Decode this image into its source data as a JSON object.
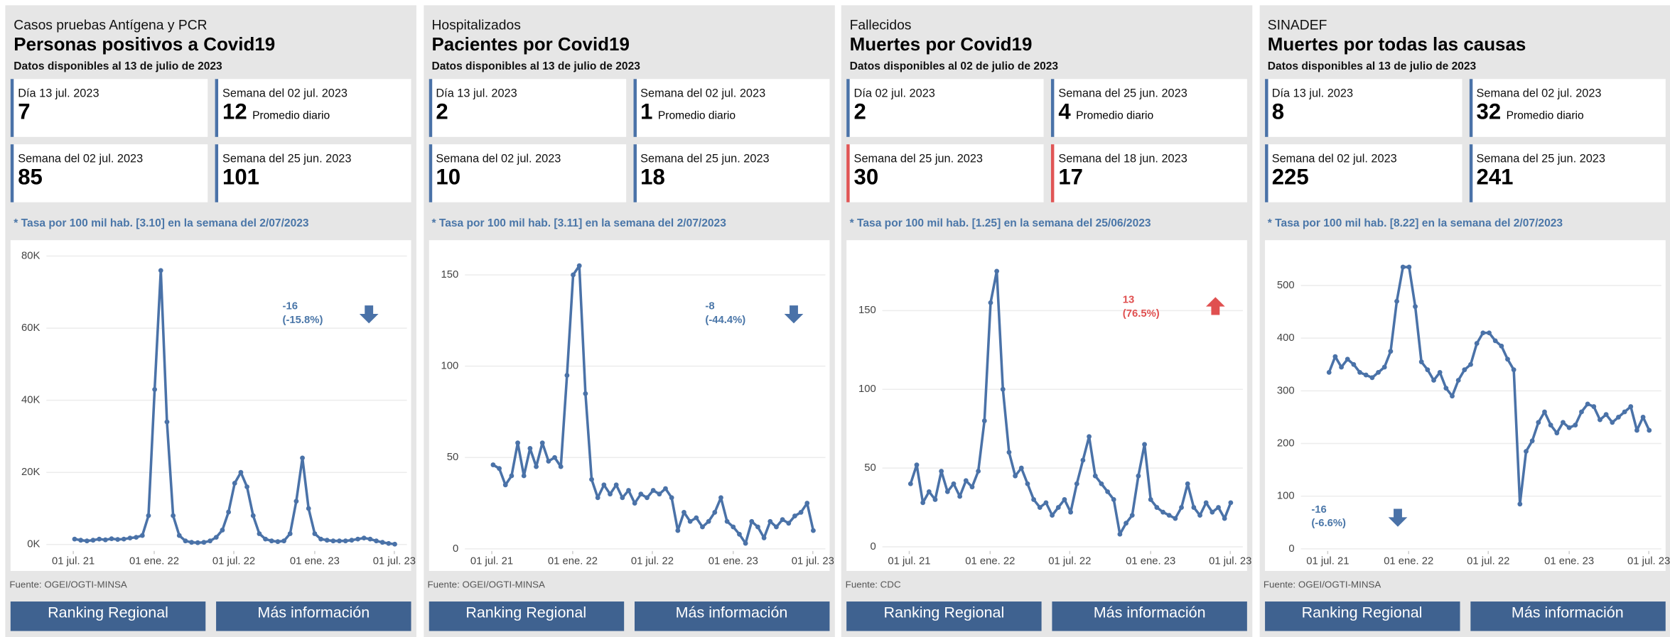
{
  "panels": [
    {
      "category": "Casos pruebas Antígena y PCR",
      "title": "Personas positivos a Covid19",
      "updated": "Datos disponibles al 13 de julio de 2023",
      "cards": [
        {
          "label": "Día 13 jul. 2023",
          "value": 7,
          "color": "#4a72a8"
        },
        {
          "label": "Semana del 02 jul. 2023",
          "value": 12,
          "note": "Promedio diario",
          "color": "#4a72a8"
        },
        {
          "label": "Semana del 02 jul. 2023",
          "value": 85,
          "color": "#4a72a8"
        },
        {
          "label": "Semana del 25 jun. 2023",
          "value": 101,
          "color": "#4a72a8"
        }
      ],
      "rate_note": "* Tasa por 100 mil hab. [3.10] en la semana del 2/07/2023",
      "chart": {
        "type": "line",
        "color": "#4a72a8",
        "grid": true,
        "x": [
          "2021-07-04",
          "2021-07-18",
          "2021-08-01",
          "2021-08-15",
          "2021-08-29",
          "2021-09-12",
          "2021-09-26",
          "2021-10-10",
          "2021-10-24",
          "2021-11-07",
          "2021-11-21",
          "2021-12-05",
          "2021-12-19",
          "2022-01-02",
          "2022-01-16",
          "2022-01-30",
          "2022-02-13",
          "2022-02-27",
          "2022-03-13",
          "2022-03-27",
          "2022-04-10",
          "2022-04-24",
          "2022-05-08",
          "2022-05-22",
          "2022-06-05",
          "2022-06-19",
          "2022-07-03",
          "2022-07-17",
          "2022-07-31",
          "2022-08-14",
          "2022-08-28",
          "2022-09-11",
          "2022-09-25",
          "2022-10-09",
          "2022-10-23",
          "2022-11-06",
          "2022-11-20",
          "2022-12-04",
          "2022-12-18",
          "2023-01-01",
          "2023-01-15",
          "2023-01-29",
          "2023-02-12",
          "2023-02-26",
          "2023-03-12",
          "2023-03-26",
          "2023-04-09",
          "2023-04-23",
          "2023-05-07",
          "2023-05-21",
          "2023-06-04",
          "2023-06-18",
          "2023-07-02"
        ],
        "values": [
          1500,
          1200,
          1000,
          1200,
          1500,
          1300,
          1600,
          1400,
          1500,
          1800,
          2000,
          2500,
          8000,
          43000,
          76000,
          34000,
          8000,
          2500,
          1000,
          600,
          500,
          600,
          1000,
          2000,
          4000,
          9000,
          17000,
          20000,
          16000,
          8000,
          3000,
          1500,
          1000,
          800,
          1000,
          3000,
          12000,
          24000,
          10000,
          3000,
          1500,
          1200,
          1000,
          1000,
          1000,
          1200,
          1500,
          1800,
          1500,
          1000,
          600,
          300,
          100
        ],
        "xlim": [
          "2021-05-20",
          "2023-07-20"
        ],
        "xticks": [
          {
            "value": "2021-07-01",
            "label": "01 jul. 21"
          },
          {
            "value": "2022-01-01",
            "label": "01 ene. 22"
          },
          {
            "value": "2022-07-01",
            "label": "01 jul. 22"
          },
          {
            "value": "2023-01-01",
            "label": "01 ene. 23"
          },
          {
            "value": "2023-07-01",
            "label": "01 jul. 23"
          }
        ],
        "ylim": [
          -1200,
          80600
        ],
        "yticks": [
          {
            "value": 0,
            "label": "0K"
          },
          {
            "value": 20000,
            "label": "20K"
          },
          {
            "value": 40000,
            "label": "40K"
          },
          {
            "value": 60000,
            "label": "60K"
          },
          {
            "value": 80000,
            "label": "80K"
          }
        ],
        "annotation": {
          "lines": [
            "-16",
            "(-15.8%)"
          ],
          "color": "#4a76a8",
          "trend": "down"
        }
      },
      "source": "Fuente: OGEI/OGTI-MINSA",
      "buttons": [
        "Ranking Regional",
        "Más información"
      ]
    },
    {
      "category": "Hospitalizados",
      "title": "Pacientes por Covid19",
      "updated": "Datos disponibles al 13 de julio de 2023",
      "cards": [
        {
          "label": "Día 13 jul. 2023",
          "value": 2,
          "color": "#4a72a8"
        },
        {
          "label": "Semana del 02 jul. 2023",
          "value": 1,
          "note": "Promedio diario",
          "color": "#4a72a8"
        },
        {
          "label": "Semana del 02 jul. 2023",
          "value": 10,
          "color": "#4a72a8"
        },
        {
          "label": "Semana del 25 jun. 2023",
          "value": 18,
          "color": "#4a72a8"
        }
      ],
      "rate_note": "* Tasa por 100 mil hab. [3.11] en la semana del 2/07/2023",
      "chart": {
        "type": "line",
        "color": "#4a72a8",
        "grid": true,
        "x": [
          "2021-07-04",
          "2021-07-18",
          "2021-08-01",
          "2021-08-15",
          "2021-08-29",
          "2021-09-12",
          "2021-09-26",
          "2021-10-10",
          "2021-10-24",
          "2021-11-07",
          "2021-11-21",
          "2021-12-05",
          "2021-12-19",
          "2022-01-02",
          "2022-01-16",
          "2022-01-30",
          "2022-02-13",
          "2022-02-27",
          "2022-03-13",
          "2022-03-27",
          "2022-04-10",
          "2022-04-24",
          "2022-05-08",
          "2022-05-22",
          "2022-06-05",
          "2022-06-19",
          "2022-07-03",
          "2022-07-17",
          "2022-07-31",
          "2022-08-14",
          "2022-08-28",
          "2022-09-11",
          "2022-09-25",
          "2022-10-09",
          "2022-10-23",
          "2022-11-06",
          "2022-11-20",
          "2022-12-04",
          "2022-12-18",
          "2023-01-01",
          "2023-01-15",
          "2023-01-29",
          "2023-02-12",
          "2023-02-26",
          "2023-03-12",
          "2023-03-26",
          "2023-04-09",
          "2023-04-23",
          "2023-05-07",
          "2023-05-21",
          "2023-06-04",
          "2023-06-18",
          "2023-07-02"
        ],
        "values": [
          46,
          44,
          35,
          40,
          58,
          40,
          55,
          45,
          58,
          48,
          50,
          45,
          95,
          150,
          155,
          85,
          38,
          28,
          35,
          30,
          35,
          28,
          32,
          25,
          30,
          28,
          32,
          30,
          33,
          28,
          10,
          20,
          15,
          17,
          12,
          15,
          20,
          28,
          15,
          12,
          8,
          3,
          15,
          12,
          6,
          15,
          12,
          16,
          14,
          18,
          20,
          25,
          10
        ],
        "xlim": [
          "2021-05-20",
          "2023-07-20"
        ],
        "xticks": [
          {
            "value": "2021-07-01",
            "label": "01 jul. 21"
          },
          {
            "value": "2022-01-01",
            "label": "01 ene. 22"
          },
          {
            "value": "2022-07-01",
            "label": "01 jul. 22"
          },
          {
            "value": "2023-01-01",
            "label": "01 ene. 23"
          },
          {
            "value": "2023-07-01",
            "label": "01 jul. 23"
          }
        ],
        "ylim": [
          0,
          161.5
        ],
        "yticks": [
          0,
          50,
          100,
          150
        ],
        "annotation": {
          "lines": [
            "-8",
            "(-44.4%)"
          ],
          "color": "#4a76a8",
          "trend": "down"
        }
      },
      "source": "Fuente: OGEI/OGTI-MINSA",
      "buttons": [
        "Ranking Regional",
        "Más información"
      ]
    },
    {
      "category": "Fallecidos",
      "title": "Muertes por Covid19",
      "updated": "Datos disponibles al 02 de julio de 2023",
      "cards": [
        {
          "label": "Día 02 jul. 2023",
          "value": 2,
          "color": "#4a72a8"
        },
        {
          "label": "Semana del 25 jun. 2023",
          "value": 4,
          "note": "Promedio diario",
          "color": "#4a72a8"
        },
        {
          "label": "Semana del 25 jun. 2023",
          "value": 30,
          "color": "#e05555"
        },
        {
          "label": "Semana del 18 jun. 2023",
          "value": 17,
          "color": "#e05555"
        }
      ],
      "rate_note": "* Tasa por 100 mil hab. [1.25] en la semana del 25/06/2023",
      "chart": {
        "type": "line",
        "color": "#4a72a8",
        "grid": true,
        "x": [
          "2021-07-04",
          "2021-07-18",
          "2021-08-01",
          "2021-08-15",
          "2021-08-29",
          "2021-09-12",
          "2021-09-26",
          "2021-10-10",
          "2021-10-24",
          "2021-11-07",
          "2021-11-21",
          "2021-12-05",
          "2021-12-19",
          "2022-01-02",
          "2022-01-16",
          "2022-01-30",
          "2022-02-13",
          "2022-02-27",
          "2022-03-13",
          "2022-03-27",
          "2022-04-10",
          "2022-04-24",
          "2022-05-08",
          "2022-05-22",
          "2022-06-05",
          "2022-06-19",
          "2022-07-03",
          "2022-07-17",
          "2022-07-31",
          "2022-08-14",
          "2022-08-28",
          "2022-09-11",
          "2022-09-25",
          "2022-10-09",
          "2022-10-23",
          "2022-11-06",
          "2022-11-20",
          "2022-12-04",
          "2022-12-18",
          "2023-01-01",
          "2023-01-15",
          "2023-01-29",
          "2023-02-12",
          "2023-02-26",
          "2023-03-12",
          "2023-03-26",
          "2023-04-09",
          "2023-04-23",
          "2023-05-07",
          "2023-05-21",
          "2023-06-04",
          "2023-06-18",
          "2023-07-02"
        ],
        "values": [
          40,
          52,
          28,
          35,
          30,
          48,
          35,
          40,
          32,
          42,
          38,
          48,
          80,
          155,
          175,
          100,
          60,
          45,
          50,
          40,
          30,
          25,
          28,
          20,
          25,
          30,
          22,
          40,
          55,
          70,
          45,
          40,
          35,
          30,
          8,
          15,
          20,
          45,
          65,
          30,
          25,
          22,
          20,
          18,
          25,
          40,
          25,
          20,
          28,
          22,
          25,
          18,
          28
        ],
        "xlim": [
          "2021-05-20",
          "2023-07-20"
        ],
        "xticks": [
          {
            "value": "2021-07-01",
            "label": "01 jul. 21"
          },
          {
            "value": "2022-01-01",
            "label": "01 ene. 22"
          },
          {
            "value": "2022-07-01",
            "label": "01 jul. 22"
          },
          {
            "value": "2023-01-01",
            "label": "01 ene. 23"
          },
          {
            "value": "2023-07-01",
            "label": "01 jul. 23"
          }
        ],
        "ylim": [
          -1.3,
          186
        ],
        "yticks": [
          0,
          50,
          100,
          150
        ],
        "annotation": {
          "lines": [
            "13",
            "(76.5%)"
          ],
          "color": "#e05050",
          "trend": "up"
        }
      },
      "source": "Fuente: CDC",
      "buttons": [
        "Ranking Regional",
        "Más información"
      ]
    },
    {
      "category": "SINADEF",
      "title": "Muertes por todas las causas",
      "updated": "Datos disponibles al 13 de julio de 2023",
      "cards": [
        {
          "label": "Día 13 jul. 2023",
          "value": 8,
          "color": "#4a72a8"
        },
        {
          "label": "Semana del 02 jul. 2023",
          "value": 32,
          "note": "Promedio diario",
          "color": "#4a72a8"
        },
        {
          "label": "Semana del 02 jul. 2023",
          "value": 225,
          "color": "#4a72a8"
        },
        {
          "label": "Semana del 25 jun. 2023",
          "value": 241,
          "color": "#4a72a8"
        }
      ],
      "rate_note": "* Tasa por 100 mil hab. [8.22] en la semana del 2/07/2023",
      "chart": {
        "type": "line",
        "color": "#4a72a8",
        "grid": true,
        "x": [
          "2021-07-04",
          "2021-07-18",
          "2021-08-01",
          "2021-08-15",
          "2021-08-29",
          "2021-09-12",
          "2021-09-26",
          "2021-10-10",
          "2021-10-24",
          "2021-11-07",
          "2021-11-21",
          "2021-12-05",
          "2021-12-19",
          "2022-01-02",
          "2022-01-16",
          "2022-01-30",
          "2022-02-13",
          "2022-02-27",
          "2022-03-13",
          "2022-03-27",
          "2022-04-10",
          "2022-04-24",
          "2022-05-08",
          "2022-05-22",
          "2022-06-05",
          "2022-06-19",
          "2022-07-03",
          "2022-07-17",
          "2022-07-31",
          "2022-08-14",
          "2022-08-28",
          "2022-09-11",
          "2022-09-25",
          "2022-10-09",
          "2022-10-23",
          "2022-11-06",
          "2022-11-20",
          "2022-12-04",
          "2022-12-18",
          "2023-01-01",
          "2023-01-15",
          "2023-01-29",
          "2023-02-12",
          "2023-02-26",
          "2023-03-12",
          "2023-03-26",
          "2023-04-09",
          "2023-04-23",
          "2023-05-07",
          "2023-05-21",
          "2023-06-04",
          "2023-06-18",
          "2023-07-02"
        ],
        "values": [
          335,
          365,
          345,
          360,
          350,
          335,
          330,
          325,
          335,
          345,
          375,
          470,
          535,
          535,
          460,
          355,
          340,
          320,
          335,
          305,
          290,
          320,
          340,
          350,
          390,
          410,
          410,
          395,
          385,
          360,
          340,
          85,
          185,
          205,
          240,
          260,
          235,
          220,
          240,
          230,
          235,
          260,
          275,
          270,
          245,
          255,
          240,
          250,
          260,
          270,
          225,
          250,
          225
        ],
        "xlim": [
          "2021-05-20",
          "2023-07-20"
        ],
        "xticks": [
          {
            "value": "2021-07-01",
            "label": "01 jul. 21"
          },
          {
            "value": "2022-01-01",
            "label": "01 ene. 22"
          },
          {
            "value": "2022-07-01",
            "label": "01 jul. 22"
          },
          {
            "value": "2023-01-01",
            "label": "01 ene. 23"
          },
          {
            "value": "2023-07-01",
            "label": "01 jul. 23"
          }
        ],
        "ylim": [
          0,
          560
        ],
        "yticks": [
          0,
          100,
          200,
          300,
          400,
          500
        ],
        "annotation": {
          "lines": [
            "-16",
            "(-6.6%)"
          ],
          "color": "#4a76a8",
          "trend": "down"
        }
      },
      "source": "Fuente: OGEI/OGTI-MINSA",
      "buttons": [
        "Ranking Regional",
        "Más información"
      ]
    }
  ]
}
